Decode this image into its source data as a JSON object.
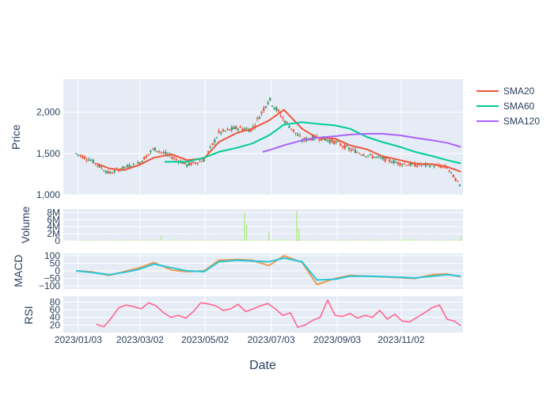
{
  "figure": {
    "xlabel": "Date",
    "x_ticks": [
      "2023/01/03",
      "2023/03/02",
      "2023/05/02",
      "2023/07/03",
      "2023/09/03",
      "2023/11/02"
    ],
    "x_range": [
      "2022/12/20",
      "2023/12/30"
    ]
  },
  "legend": {
    "placement": "top-right",
    "items": [
      {
        "name": "SMA20",
        "color": "#ef553b"
      },
      {
        "name": "SMA60",
        "color": "#00cc96"
      },
      {
        "name": "SMA120",
        "color": "#ab63fa"
      }
    ]
  },
  "colors": {
    "increasing": "#3d9970",
    "decreasing": "#ef553b",
    "volume": "#b6e880",
    "macd": "#ef9a4c",
    "signal": "#26c6da",
    "rsi": "#ff6692",
    "plot_bg": "#e5ecf6"
  },
  "chart_data": [
    {
      "type": "candlestick",
      "ylabel": "Price",
      "ylim": [
        1000,
        2400
      ],
      "y_ticks": [
        "1,000",
        "1,500",
        "2,000"
      ],
      "y_tick_values": [
        1000,
        1500,
        2000
      ],
      "dates": [
        "2023/01/01",
        "2023/01/15",
        "2023/02/01",
        "2023/02/15",
        "2023/03/01",
        "2023/03/15",
        "2023/04/01",
        "2023/04/15",
        "2023/05/01",
        "2023/05/15",
        "2023/06/01",
        "2023/06/15",
        "2023/07/01",
        "2023/07/15",
        "2023/08/01",
        "2023/08/15",
        "2023/09/01",
        "2023/09/15",
        "2023/10/01",
        "2023/10/15",
        "2023/11/01",
        "2023/11/15",
        "2023/12/01",
        "2023/12/15",
        "2023/12/28"
      ],
      "close": [
        1500,
        1420,
        1260,
        1330,
        1380,
        1560,
        1460,
        1360,
        1420,
        1750,
        1810,
        1790,
        2160,
        1910,
        1660,
        1700,
        1640,
        1550,
        1480,
        1440,
        1380,
        1360,
        1360,
        1330,
        1100
      ],
      "series": [
        {
          "name": "SMA20",
          "x": [
            "2023/01/20",
            "2023/02/01",
            "2023/02/15",
            "2023/03/01",
            "2023/03/15",
            "2023/04/01",
            "2023/04/15",
            "2023/05/01",
            "2023/05/15",
            "2023/06/01",
            "2023/06/15",
            "2023/07/01",
            "2023/07/15",
            "2023/08/01",
            "2023/08/15",
            "2023/09/01",
            "2023/09/15",
            "2023/10/01",
            "2023/10/15",
            "2023/11/01",
            "2023/11/15",
            "2023/12/01",
            "2023/12/15",
            "2023/12/28"
          ],
          "values": [
            1380,
            1320,
            1300,
            1360,
            1450,
            1490,
            1420,
            1440,
            1640,
            1750,
            1800,
            1900,
            2030,
            1800,
            1690,
            1680,
            1600,
            1550,
            1470,
            1420,
            1380,
            1370,
            1340,
            1280
          ]
        },
        {
          "name": "SMA60",
          "x": [
            "2023/03/25",
            "2023/04/15",
            "2023/05/01",
            "2023/05/15",
            "2023/06/01",
            "2023/06/15",
            "2023/07/01",
            "2023/07/15",
            "2023/08/01",
            "2023/08/15",
            "2023/09/01",
            "2023/09/15",
            "2023/10/01",
            "2023/10/15",
            "2023/11/01",
            "2023/11/15",
            "2023/12/01",
            "2023/12/15",
            "2023/12/28"
          ],
          "values": [
            1400,
            1400,
            1450,
            1520,
            1570,
            1620,
            1720,
            1850,
            1880,
            1860,
            1840,
            1800,
            1700,
            1640,
            1580,
            1520,
            1470,
            1420,
            1380
          ]
        },
        {
          "name": "SMA120",
          "x": [
            "2023/06/25",
            "2023/07/01",
            "2023/07/15",
            "2023/08/01",
            "2023/08/15",
            "2023/09/01",
            "2023/09/15",
            "2023/10/01",
            "2023/10/15",
            "2023/11/01",
            "2023/11/15",
            "2023/12/01",
            "2023/12/15",
            "2023/12/28"
          ],
          "values": [
            1520,
            1540,
            1600,
            1660,
            1690,
            1710,
            1730,
            1740,
            1740,
            1720,
            1690,
            1660,
            1630,
            1580
          ]
        }
      ]
    },
    {
      "type": "bar",
      "ylabel": "Volume",
      "ylim": [
        0,
        9000000
      ],
      "y_ticks": [
        "0",
        "2M",
        "4M",
        "6M",
        "8M"
      ],
      "y_tick_values": [
        0,
        2000000,
        4000000,
        6000000,
        8000000
      ],
      "spikes": [
        {
          "x": "2023/03/22",
          "value": 1500000
        },
        {
          "x": "2023/06/08",
          "value": 8000000
        },
        {
          "x": "2023/06/10",
          "value": 4500000
        },
        {
          "x": "2023/07/01",
          "value": 2500000
        },
        {
          "x": "2023/07/27",
          "value": 8500000
        },
        {
          "x": "2023/07/29",
          "value": 3500000
        },
        {
          "x": "2023/12/28",
          "value": 1300000
        }
      ],
      "baseline_value": 250000
    },
    {
      "type": "line",
      "ylabel": "MACD",
      "ylim": [
        -120,
        115
      ],
      "y_ticks": [
        "100",
        "50",
        "0",
        "−50",
        "−100"
      ],
      "y_tick_values": [
        100,
        50,
        0,
        -50,
        -100
      ],
      "series": [
        {
          "name": "MACD",
          "x": [
            "2023/01/01",
            "2023/01/15",
            "2023/02/01",
            "2023/02/15",
            "2023/03/01",
            "2023/03/15",
            "2023/04/01",
            "2023/04/15",
            "2023/05/01",
            "2023/05/15",
            "2023/06/01",
            "2023/06/15",
            "2023/07/01",
            "2023/07/15",
            "2023/08/01",
            "2023/08/15",
            "2023/09/01",
            "2023/09/15",
            "2023/10/01",
            "2023/10/15",
            "2023/11/01",
            "2023/11/15",
            "2023/12/01",
            "2023/12/15",
            "2023/12/28"
          ],
          "values": [
            0,
            -5,
            -30,
            -5,
            20,
            55,
            5,
            -5,
            0,
            70,
            75,
            70,
            35,
            100,
            55,
            -90,
            -50,
            -30,
            -35,
            -40,
            -45,
            -50,
            -25,
            -20,
            -40
          ]
        },
        {
          "name": "Signal",
          "x": [
            "2023/01/01",
            "2023/01/15",
            "2023/02/01",
            "2023/02/15",
            "2023/03/01",
            "2023/03/15",
            "2023/04/01",
            "2023/04/15",
            "2023/05/01",
            "2023/05/15",
            "2023/06/01",
            "2023/06/15",
            "2023/07/01",
            "2023/07/15",
            "2023/08/01",
            "2023/08/15",
            "2023/09/01",
            "2023/09/15",
            "2023/10/01",
            "2023/10/15",
            "2023/11/01",
            "2023/11/15",
            "2023/12/01",
            "2023/12/15",
            "2023/12/28"
          ],
          "values": [
            0,
            -10,
            -25,
            -10,
            10,
            45,
            20,
            0,
            -5,
            60,
            70,
            65,
            60,
            85,
            60,
            -60,
            -55,
            -35,
            -35,
            -38,
            -42,
            -47,
            -35,
            -25,
            -35
          ]
        }
      ]
    },
    {
      "type": "line",
      "ylabel": "RSI",
      "ylim": [
        0,
        95
      ],
      "y_ticks": [
        "80",
        "60",
        "40",
        "20"
      ],
      "y_tick_values": [
        80,
        60,
        40,
        20
      ],
      "series": [
        {
          "name": "RSI",
          "x": [
            "2023/01/20",
            "2023/01/27",
            "2023/02/03",
            "2023/02/10",
            "2023/02/17",
            "2023/02/24",
            "2023/03/03",
            "2023/03/10",
            "2023/03/17",
            "2023/03/24",
            "2023/03/31",
            "2023/04/07",
            "2023/04/14",
            "2023/04/21",
            "2023/04/28",
            "2023/05/05",
            "2023/05/12",
            "2023/05/19",
            "2023/05/26",
            "2023/06/02",
            "2023/06/09",
            "2023/06/16",
            "2023/06/23",
            "2023/06/30",
            "2023/07/07",
            "2023/07/14",
            "2023/07/21",
            "2023/07/28",
            "2023/08/04",
            "2023/08/11",
            "2023/08/18",
            "2023/08/25",
            "2023/09/01",
            "2023/09/08",
            "2023/09/15",
            "2023/09/22",
            "2023/09/29",
            "2023/10/06",
            "2023/10/13",
            "2023/10/20",
            "2023/10/27",
            "2023/11/03",
            "2023/11/10",
            "2023/11/17",
            "2023/11/24",
            "2023/12/01",
            "2023/12/08",
            "2023/12/15",
            "2023/12/22",
            "2023/12/28"
          ],
          "values": [
            22,
            15,
            38,
            65,
            72,
            68,
            62,
            78,
            70,
            52,
            40,
            45,
            38,
            55,
            78,
            75,
            70,
            58,
            62,
            74,
            55,
            62,
            70,
            76,
            62,
            45,
            52,
            14,
            20,
            32,
            40,
            85,
            45,
            42,
            50,
            38,
            45,
            40,
            58,
            35,
            48,
            30,
            28,
            40,
            52,
            65,
            72,
            35,
            30,
            18
          ]
        }
      ]
    }
  ]
}
